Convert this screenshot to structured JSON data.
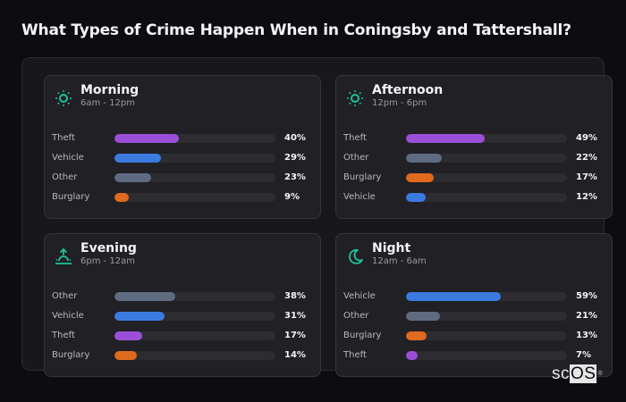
{
  "title": "What Types of Crime Happen When in Coningsby and Tattershall?",
  "colors": {
    "Theft": "#9b4fd8",
    "Vehicle": "#3b7be0",
    "Other": "#5f6b80",
    "Burglary": "#e06a1e",
    "icon": "#1fc29a"
  },
  "cards": [
    {
      "name": "Morning",
      "range": "6am - 12pm",
      "icon": "sun-icon",
      "rows": [
        {
          "label": "Theft",
          "value": 40,
          "pct": "40%"
        },
        {
          "label": "Vehicle",
          "value": 29,
          "pct": "29%"
        },
        {
          "label": "Other",
          "value": 23,
          "pct": "23%"
        },
        {
          "label": "Burglary",
          "value": 9,
          "pct": "9%"
        }
      ]
    },
    {
      "name": "Afternoon",
      "range": "12pm - 6pm",
      "icon": "sun-icon",
      "rows": [
        {
          "label": "Theft",
          "value": 49,
          "pct": "49%"
        },
        {
          "label": "Other",
          "value": 22,
          "pct": "22%"
        },
        {
          "label": "Burglary",
          "value": 17,
          "pct": "17%"
        },
        {
          "label": "Vehicle",
          "value": 12,
          "pct": "12%"
        }
      ]
    },
    {
      "name": "Evening",
      "range": "6pm - 12am",
      "icon": "sunset-icon",
      "rows": [
        {
          "label": "Other",
          "value": 38,
          "pct": "38%"
        },
        {
          "label": "Vehicle",
          "value": 31,
          "pct": "31%"
        },
        {
          "label": "Theft",
          "value": 17,
          "pct": "17%"
        },
        {
          "label": "Burglary",
          "value": 14,
          "pct": "14%"
        }
      ]
    },
    {
      "name": "Night",
      "range": "12am - 6am",
      "icon": "moon-icon",
      "rows": [
        {
          "label": "Vehicle",
          "value": 59,
          "pct": "59%"
        },
        {
          "label": "Other",
          "value": 21,
          "pct": "21%"
        },
        {
          "label": "Burglary",
          "value": 13,
          "pct": "13%"
        },
        {
          "label": "Theft",
          "value": 7,
          "pct": "7%"
        }
      ]
    }
  ],
  "logo": {
    "sc": "sc",
    "os": "OS",
    "mark": "®"
  },
  "chart_data": {
    "type": "bar",
    "orientation": "horizontal",
    "title": "What Types of Crime Happen When in Coningsby and Tattershall?",
    "xlabel": "",
    "ylabel": "",
    "xlim": [
      0,
      100
    ],
    "grid": false,
    "legend": "none",
    "panels": [
      {
        "title": "Morning",
        "subtitle": "6am - 12pm",
        "categories": [
          "Theft",
          "Vehicle",
          "Other",
          "Burglary"
        ],
        "values": [
          40,
          29,
          23,
          9
        ]
      },
      {
        "title": "Afternoon",
        "subtitle": "12pm - 6pm",
        "categories": [
          "Theft",
          "Other",
          "Burglary",
          "Vehicle"
        ],
        "values": [
          49,
          22,
          17,
          12
        ]
      },
      {
        "title": "Evening",
        "subtitle": "6pm - 12am",
        "categories": [
          "Other",
          "Vehicle",
          "Theft",
          "Burglary"
        ],
        "values": [
          38,
          31,
          17,
          14
        ]
      },
      {
        "title": "Night",
        "subtitle": "12am - 6am",
        "categories": [
          "Vehicle",
          "Other",
          "Burglary",
          "Theft"
        ],
        "values": [
          59,
          21,
          13,
          7
        ]
      }
    ]
  }
}
